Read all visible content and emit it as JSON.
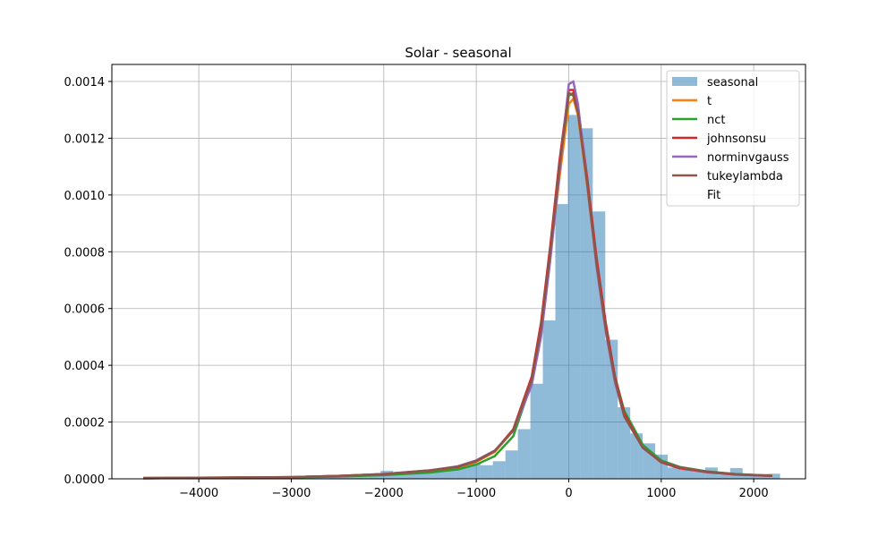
{
  "chart_data": {
    "type": "histogram",
    "title": "Solar - seasonal",
    "xlabel": "",
    "ylabel": "",
    "xlim": [
      -4940,
      2560
    ],
    "ylim": [
      0,
      0.00146
    ],
    "grid": true,
    "legend_position": "top-right",
    "x_ticks": [
      -4000,
      -3000,
      -2000,
      -1000,
      0,
      1000,
      2000
    ],
    "x_tick_labels": [
      "−4000",
      "−3000",
      "−2000",
      "−1000",
      "0",
      "1000",
      "2000"
    ],
    "y_ticks": [
      0,
      0.0002,
      0.0004,
      0.0006,
      0.0008,
      0.001,
      0.0012,
      0.0014
    ],
    "y_tick_labels": [
      "0.0000",
      "0.0002",
      "0.0004",
      "0.0006",
      "0.0008",
      "0.0010",
      "0.0012",
      "0.0014"
    ],
    "histogram": {
      "name": "seasonal",
      "color": "#1f77b4",
      "opacity": 0.5,
      "bin_start": -4600,
      "bin_width": 135,
      "heights": [
        3e-06,
        3e-06,
        2e-06,
        3e-06,
        3e-06,
        2e-06,
        3e-06,
        3e-06,
        3e-06,
        3e-06,
        4e-06,
        4e-06,
        5e-06,
        1.2e-05,
        8e-06,
        7e-06,
        7e-06,
        8e-06,
        1.2e-05,
        2.8e-05,
        1.6e-05,
        2e-05,
        3e-05,
        3e-05,
        3.8e-05,
        4.5e-05,
        5.5e-05,
        4.8e-05,
        6.2e-05,
        0.0001,
        0.000175,
        0.000335,
        0.000558,
        0.000968,
        0.001282,
        0.001235,
        0.000942,
        0.00049,
        0.000252,
        0.00016,
        0.000125,
        8.5e-05,
        4e-05,
        3.2e-05,
        2.5e-05,
        4e-05,
        1.5e-05,
        3.8e-05,
        1.3e-05,
        1.7e-05,
        1.8e-05
      ]
    },
    "series": [
      {
        "name": "t",
        "color": "#ff7f0e",
        "x": [
          -4600,
          -4000,
          -3000,
          -2500,
          -2000,
          -1500,
          -1200,
          -1000,
          -800,
          -600,
          -400,
          -300,
          -200,
          -100,
          0,
          50,
          100,
          200,
          300,
          400,
          500,
          600,
          800,
          1000,
          1200,
          1500,
          1800,
          2200
        ],
        "y": [
          3e-06,
          4e-06,
          6e-06,
          1e-05,
          1.6e-05,
          2.8e-05,
          4e-05,
          6e-05,
          9.5e-05,
          0.00017,
          0.00035,
          0.00053,
          0.00078,
          0.00106,
          0.00132,
          0.00134,
          0.00128,
          0.00103,
          0.00075,
          0.00052,
          0.00034,
          0.00022,
          0.00011,
          6e-05,
          4e-05,
          2.5e-05,
          1.6e-05,
          1e-05
        ]
      },
      {
        "name": "nct",
        "color": "#2ca02c",
        "x": [
          -4600,
          -4000,
          -3000,
          -2500,
          -2000,
          -1500,
          -1200,
          -1000,
          -800,
          -600,
          -400,
          -300,
          -200,
          -100,
          0,
          50,
          100,
          200,
          300,
          400,
          500,
          600,
          800,
          1000,
          1200,
          1500,
          1800,
          2200
        ],
        "y": [
          2e-06,
          3e-06,
          5e-06,
          8e-06,
          1.3e-05,
          2.2e-05,
          3.3e-05,
          5e-05,
          8e-05,
          0.00015,
          0.00034,
          0.00053,
          0.0008,
          0.0011,
          0.00135,
          0.00136,
          0.0013,
          0.00105,
          0.00077,
          0.00054,
          0.00036,
          0.00024,
          0.00012,
          6.5e-05,
          4.2e-05,
          2.6e-05,
          1.7e-05,
          1.1e-05
        ]
      },
      {
        "name": "johnsonsu",
        "color": "#d62728",
        "x": [
          -4600,
          -4000,
          -3000,
          -2500,
          -2000,
          -1500,
          -1200,
          -1000,
          -800,
          -600,
          -400,
          -300,
          -200,
          -100,
          0,
          50,
          100,
          200,
          300,
          400,
          500,
          600,
          800,
          1000,
          1200,
          1500,
          1800,
          2200
        ],
        "y": [
          2e-06,
          3e-06,
          6e-06,
          1e-05,
          1.6e-05,
          2.9e-05,
          4.2e-05,
          6.2e-05,
          9.8e-05,
          0.000175,
          0.00036,
          0.00055,
          0.00082,
          0.00112,
          0.00137,
          0.00137,
          0.00131,
          0.00106,
          0.00078,
          0.00055,
          0.00036,
          0.00023,
          0.00011,
          5.8e-05,
          3.7e-05,
          2.3e-05,
          1.5e-05,
          1e-05
        ]
      },
      {
        "name": "norminvgauss",
        "color": "#9467bd",
        "x": [
          -4600,
          -4000,
          -3000,
          -2500,
          -2000,
          -1500,
          -1200,
          -1000,
          -800,
          -600,
          -400,
          -300,
          -200,
          -100,
          0,
          50,
          100,
          200,
          300,
          400,
          500,
          600,
          800,
          1000,
          1200,
          1500,
          1800,
          2200
        ],
        "y": [
          2e-06,
          3e-06,
          6e-06,
          1e-05,
          1.7e-05,
          3e-05,
          4.4e-05,
          6.5e-05,
          0.0001,
          0.00017,
          0.00033,
          0.0005,
          0.00077,
          0.00108,
          0.00139,
          0.0014,
          0.00132,
          0.00104,
          0.00075,
          0.00052,
          0.00034,
          0.00022,
          0.00011,
          6e-05,
          4e-05,
          2.4e-05,
          1.6e-05,
          1e-05
        ]
      },
      {
        "name": "tukeylambda",
        "color": "#8c564b",
        "x": [
          -4600,
          -4000,
          -3000,
          -2500,
          -2000,
          -1500,
          -1200,
          -1000,
          -800,
          -600,
          -400,
          -300,
          -200,
          -100,
          0,
          50,
          100,
          200,
          300,
          400,
          500,
          600,
          800,
          1000,
          1200,
          1500,
          1800,
          2200
        ],
        "y": [
          3e-06,
          4e-06,
          6e-06,
          1e-05,
          1.7e-05,
          3e-05,
          4.3e-05,
          6.3e-05,
          9.8e-05,
          0.00017,
          0.00035,
          0.00053,
          0.0008,
          0.0011,
          0.00136,
          0.00135,
          0.00129,
          0.00104,
          0.00076,
          0.00053,
          0.00035,
          0.00022,
          0.00011,
          6e-05,
          4e-05,
          2.5e-05,
          1.6e-05,
          1e-05
        ]
      }
    ],
    "legend": [
      "seasonal",
      "t",
      "nct",
      "johnsonsu",
      "norminvgauss",
      "tukeylambda",
      "Fit"
    ]
  }
}
